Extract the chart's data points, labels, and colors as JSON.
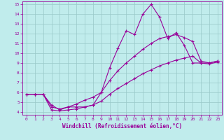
{
  "xlabel": "Windchill (Refroidissement éolien,°C)",
  "bg_color": "#c0ecec",
  "grid_color": "#98c8c8",
  "line_color": "#990099",
  "xlim": [
    -0.5,
    23.5
  ],
  "ylim": [
    3.7,
    15.3
  ],
  "xticks": [
    0,
    1,
    2,
    3,
    4,
    5,
    6,
    7,
    8,
    9,
    10,
    11,
    12,
    13,
    14,
    15,
    16,
    17,
    18,
    19,
    20,
    21,
    22,
    23
  ],
  "yticks": [
    4,
    5,
    6,
    7,
    8,
    9,
    10,
    11,
    12,
    13,
    14,
    15
  ],
  "line1_x": [
    0,
    1,
    2,
    3,
    4,
    5,
    6,
    7,
    8,
    9,
    10,
    11,
    12,
    13,
    14,
    15,
    16,
    17,
    18,
    19,
    20,
    21,
    22,
    23
  ],
  "line1_y": [
    5.8,
    5.8,
    5.8,
    4.7,
    4.2,
    4.5,
    4.5,
    4.5,
    4.7,
    6.0,
    8.5,
    10.5,
    12.3,
    11.9,
    14.0,
    15.0,
    13.7,
    11.5,
    12.1,
    10.8,
    9.0,
    9.0,
    9.0,
    9.2
  ],
  "line2_x": [
    0,
    1,
    2,
    3,
    4,
    5,
    6,
    7,
    8,
    9,
    10,
    11,
    12,
    13,
    14,
    15,
    16,
    17,
    18,
    19,
    20,
    21,
    22,
    23
  ],
  "line2_y": [
    5.8,
    5.8,
    5.8,
    4.5,
    4.3,
    4.5,
    4.8,
    5.2,
    5.5,
    6.0,
    7.2,
    8.2,
    9.0,
    9.7,
    10.4,
    11.0,
    11.5,
    11.7,
    11.9,
    11.6,
    11.2,
    9.2,
    9.0,
    9.2
  ],
  "line3_x": [
    0,
    1,
    2,
    3,
    4,
    5,
    6,
    7,
    8,
    9,
    10,
    11,
    12,
    13,
    14,
    15,
    16,
    17,
    18,
    19,
    20,
    21,
    22,
    23
  ],
  "line3_y": [
    5.8,
    5.8,
    5.8,
    4.2,
    4.1,
    4.2,
    4.3,
    4.5,
    4.7,
    5.1,
    5.8,
    6.4,
    6.9,
    7.4,
    7.9,
    8.3,
    8.7,
    9.0,
    9.3,
    9.5,
    9.7,
    9.0,
    8.9,
    9.1
  ],
  "marker": "+",
  "markersize": 3,
  "linewidth": 0.8,
  "tick_fontsize": 4.5,
  "xlabel_fontsize": 5.5
}
